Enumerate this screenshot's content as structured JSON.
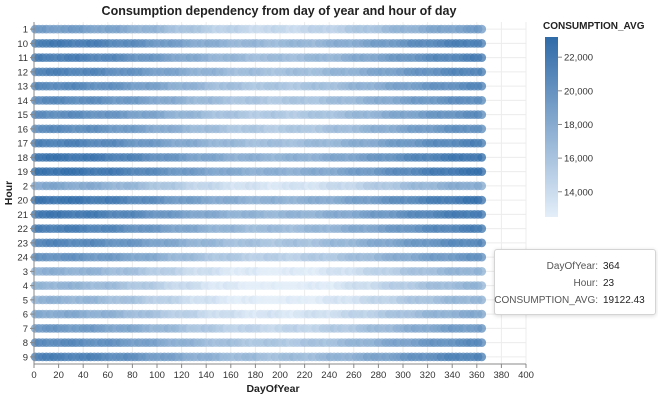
{
  "chart_data": {
    "type": "scatter",
    "title": "Consumption dependency from day of year and hour of day",
    "xlabel": "DayOfYear",
    "ylabel": "Hour",
    "xlim": [
      0,
      400
    ],
    "x_ticks": [
      "0",
      "20",
      "40",
      "60",
      "80",
      "100",
      "120",
      "140",
      "160",
      "180",
      "200",
      "220",
      "240",
      "260",
      "280",
      "300",
      "320",
      "340",
      "360",
      "380",
      "400"
    ],
    "y_categories": [
      "1",
      "10",
      "11",
      "12",
      "13",
      "14",
      "15",
      "16",
      "17",
      "18",
      "19",
      "2",
      "20",
      "21",
      "22",
      "23",
      "24",
      "3",
      "4",
      "5",
      "6",
      "7",
      "8",
      "9"
    ],
    "day_range": [
      1,
      365
    ],
    "color_field": "CONSUMPTION_AVG",
    "color_domain": [
      12500,
      23200
    ],
    "color_range": [
      "#e3eef9",
      "#2f6ba8"
    ],
    "legend": {
      "title": "CONSUMPTION_AVG",
      "ticks": [
        "22,000",
        "20,000",
        "18,000",
        "16,000",
        "14,000"
      ],
      "tick_values": [
        22000,
        20000,
        18000,
        16000,
        14000
      ],
      "position": "right"
    },
    "hour_profile": {
      "1": 16900,
      "10": 19600,
      "11": 19300,
      "12": 19000,
      "13": 18500,
      "14": 18400,
      "15": 18200,
      "16": 18200,
      "17": 19100,
      "18": 20200,
      "19": 20400,
      "2": 15900,
      "20": 20200,
      "21": 19900,
      "22": 19400,
      "23": 18700,
      "24": 17700,
      "3": 15200,
      "4": 14900,
      "5": 15000,
      "6": 15800,
      "7": 17200,
      "8": 18400,
      "9": 19200
    },
    "seasonal_amplitude": 2600,
    "grid": true
  },
  "tooltip": {
    "rows": [
      {
        "key": "DayOfYear:",
        "value": "364"
      },
      {
        "key": "Hour:",
        "value": "23"
      },
      {
        "key": "CONSUMPTION_AVG:",
        "value": "19122.43"
      }
    ]
  }
}
